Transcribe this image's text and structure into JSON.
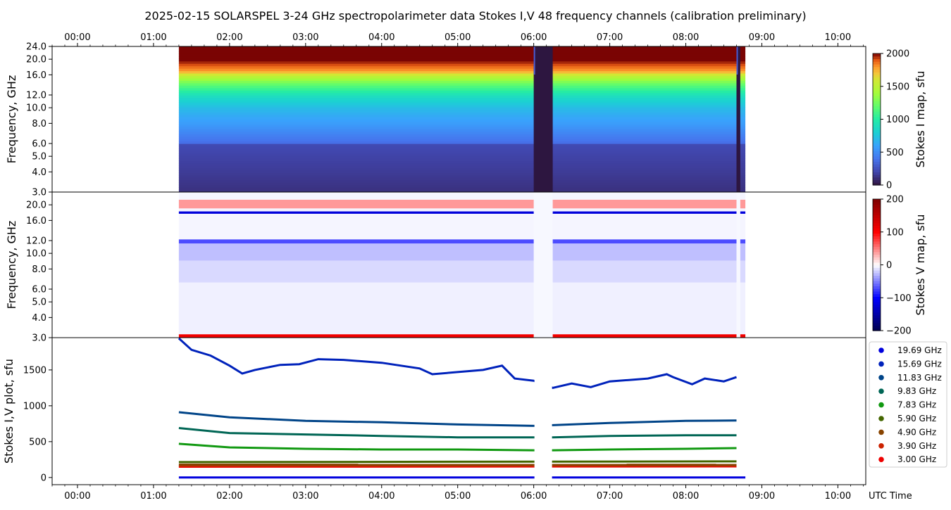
{
  "title": "2025-02-15  SOLARSPEL  3-24 GHz spectropolarimeter data   Stokes I,V   48 frequency channels   (calibration preliminary)",
  "time_ticks": [
    "00:00",
    "01:00",
    "02:00",
    "03:00",
    "04:00",
    "05:00",
    "06:00",
    "07:00",
    "08:00",
    "09:00",
    "10:00"
  ],
  "xlabel": "UTC Time",
  "colors": {
    "stokes_i_map": "turbo",
    "stokes_v_map": "seismic"
  },
  "chart_data": [
    {
      "type": "heatmap",
      "panel": "stokes_i_map",
      "ylabel": "Frequency, GHz",
      "x_range": [
        "23:40",
        "10:22"
      ],
      "ylim": [
        3.0,
        24.0
      ],
      "y_scale": "log",
      "y_ticks": [
        "24.0",
        "20.0",
        "16.0",
        "12.0",
        "10.0",
        "8.0",
        "6.0",
        "5.0",
        "4.0",
        "3.0"
      ],
      "data_start": "01:20",
      "data_end": "08:47",
      "gaps": [
        [
          "06:00",
          "06:15"
        ],
        [
          "08:40",
          "08:43"
        ]
      ],
      "colorbar": {
        "label": "Stokes I map, sfu",
        "min": 0,
        "max": 2000,
        "ticks": [
          "2000",
          "1500",
          "1000",
          "500",
          "0"
        ]
      },
      "profile_ghz": [
        3.0,
        3.9,
        4.9,
        5.9,
        6.1,
        7.83,
        9.83,
        11.83,
        14.0,
        15.69,
        17.0,
        19.69,
        24.0
      ],
      "profile_sfu": [
        120,
        160,
        190,
        220,
        380,
        560,
        700,
        890,
        1200,
        1500,
        1800,
        2000,
        2000
      ]
    },
    {
      "type": "heatmap",
      "panel": "stokes_v_map",
      "ylabel": "Frequency, GHz",
      "x_range": [
        "23:40",
        "10:22"
      ],
      "ylim": [
        3.0,
        24.0
      ],
      "y_scale": "log",
      "y_ticks": [
        "20.0",
        "16.0",
        "12.0",
        "10.0",
        "8.0",
        "6.0",
        "5.0",
        "4.0",
        "3.0"
      ],
      "colorbar": {
        "label": "Stokes V map, sfu",
        "min": -200,
        "max": 200,
        "ticks": [
          "200",
          "100",
          "0",
          "−100",
          "−200"
        ]
      },
      "bands": [
        {
          "ghz": [
            3.0,
            3.15
          ],
          "v": 110
        },
        {
          "ghz": [
            19.0,
            21.5
          ],
          "v": 40
        },
        {
          "ghz": [
            17.6,
            18.2
          ],
          "v": -120
        },
        {
          "ghz": [
            11.5,
            12.2
          ],
          "v": -70
        },
        {
          "ghz": [
            9.0,
            11.5
          ],
          "v": -25
        },
        {
          "ghz": [
            6.6,
            9.0
          ],
          "v": -15
        },
        {
          "ghz": [
            3.15,
            6.6
          ],
          "v": -6
        }
      ]
    },
    {
      "type": "line",
      "panel": "stokes_iv_plot",
      "ylabel": "Stokes I,V plot, sfu",
      "xlabel": "UTC Time",
      "x_range": [
        "23:40",
        "10:22"
      ],
      "ylim": [
        -100,
        1950
      ],
      "y_ticks": [
        0,
        500,
        1000,
        1500
      ],
      "legend_position": "right",
      "series": [
        {
          "name": "19.69 GHz",
          "color": "#0000dd",
          "t": [
            "01:20",
            "08:47"
          ],
          "values": [
            0,
            0
          ]
        },
        {
          "name": "15.69 GHz",
          "color": "#0022bb",
          "t": [
            "01:20",
            "01:30",
            "01:45",
            "02:00",
            "02:10",
            "02:20",
            "02:40",
            "02:55",
            "03:10",
            "03:30",
            "04:00",
            "04:30",
            "04:40",
            "05:00",
            "05:20",
            "05:35",
            "05:45",
            "06:00",
            "06:15",
            "06:30",
            "06:45",
            "07:00",
            "07:15",
            "07:30",
            "07:45",
            "07:50",
            "08:05",
            "08:15",
            "08:30",
            "08:40"
          ],
          "values": [
            1940,
            1780,
            1700,
            1560,
            1450,
            1500,
            1570,
            1580,
            1650,
            1640,
            1600,
            1520,
            1440,
            1470,
            1500,
            1560,
            1380,
            1350,
            1250,
            1310,
            1260,
            1340,
            1360,
            1380,
            1440,
            1400,
            1300,
            1380,
            1340,
            1400
          ]
        },
        {
          "name": "11.83 GHz",
          "color": "#004488",
          "t": [
            "01:20",
            "02:00",
            "03:00",
            "04:00",
            "05:00",
            "06:00",
            "06:15",
            "07:00",
            "08:00",
            "08:40"
          ],
          "values": [
            910,
            840,
            790,
            770,
            740,
            720,
            730,
            760,
            790,
            795
          ]
        },
        {
          "name": "9.83 GHz",
          "color": "#006655",
          "t": [
            "01:20",
            "02:00",
            "03:00",
            "04:00",
            "05:00",
            "06:00",
            "06:15",
            "07:00",
            "08:00",
            "08:40"
          ],
          "values": [
            690,
            620,
            600,
            580,
            560,
            560,
            560,
            580,
            590,
            590
          ]
        },
        {
          "name": "7.83 GHz",
          "color": "#119911",
          "t": [
            "01:20",
            "02:00",
            "03:00",
            "04:00",
            "05:00",
            "06:00",
            "06:15",
            "07:00",
            "08:00",
            "08:40"
          ],
          "values": [
            470,
            420,
            400,
            390,
            390,
            380,
            380,
            390,
            400,
            410
          ]
        },
        {
          "name": "5.90 GHz",
          "color": "#446600",
          "t": [
            "01:20",
            "08:40"
          ],
          "values": [
            215,
            225
          ]
        },
        {
          "name": "4.90 GHz",
          "color": "#884400",
          "t": [
            "01:20",
            "08:40"
          ],
          "values": [
            180,
            178
          ]
        },
        {
          "name": "3.90 GHz",
          "color": "#cc2200",
          "t": [
            "01:20",
            "08:40"
          ],
          "values": [
            160,
            165
          ]
        },
        {
          "name": "3.00 GHz",
          "color": "#ee0000",
          "t": [
            "01:20",
            "08:40"
          ],
          "values": [
            150,
            155
          ]
        }
      ]
    }
  ]
}
